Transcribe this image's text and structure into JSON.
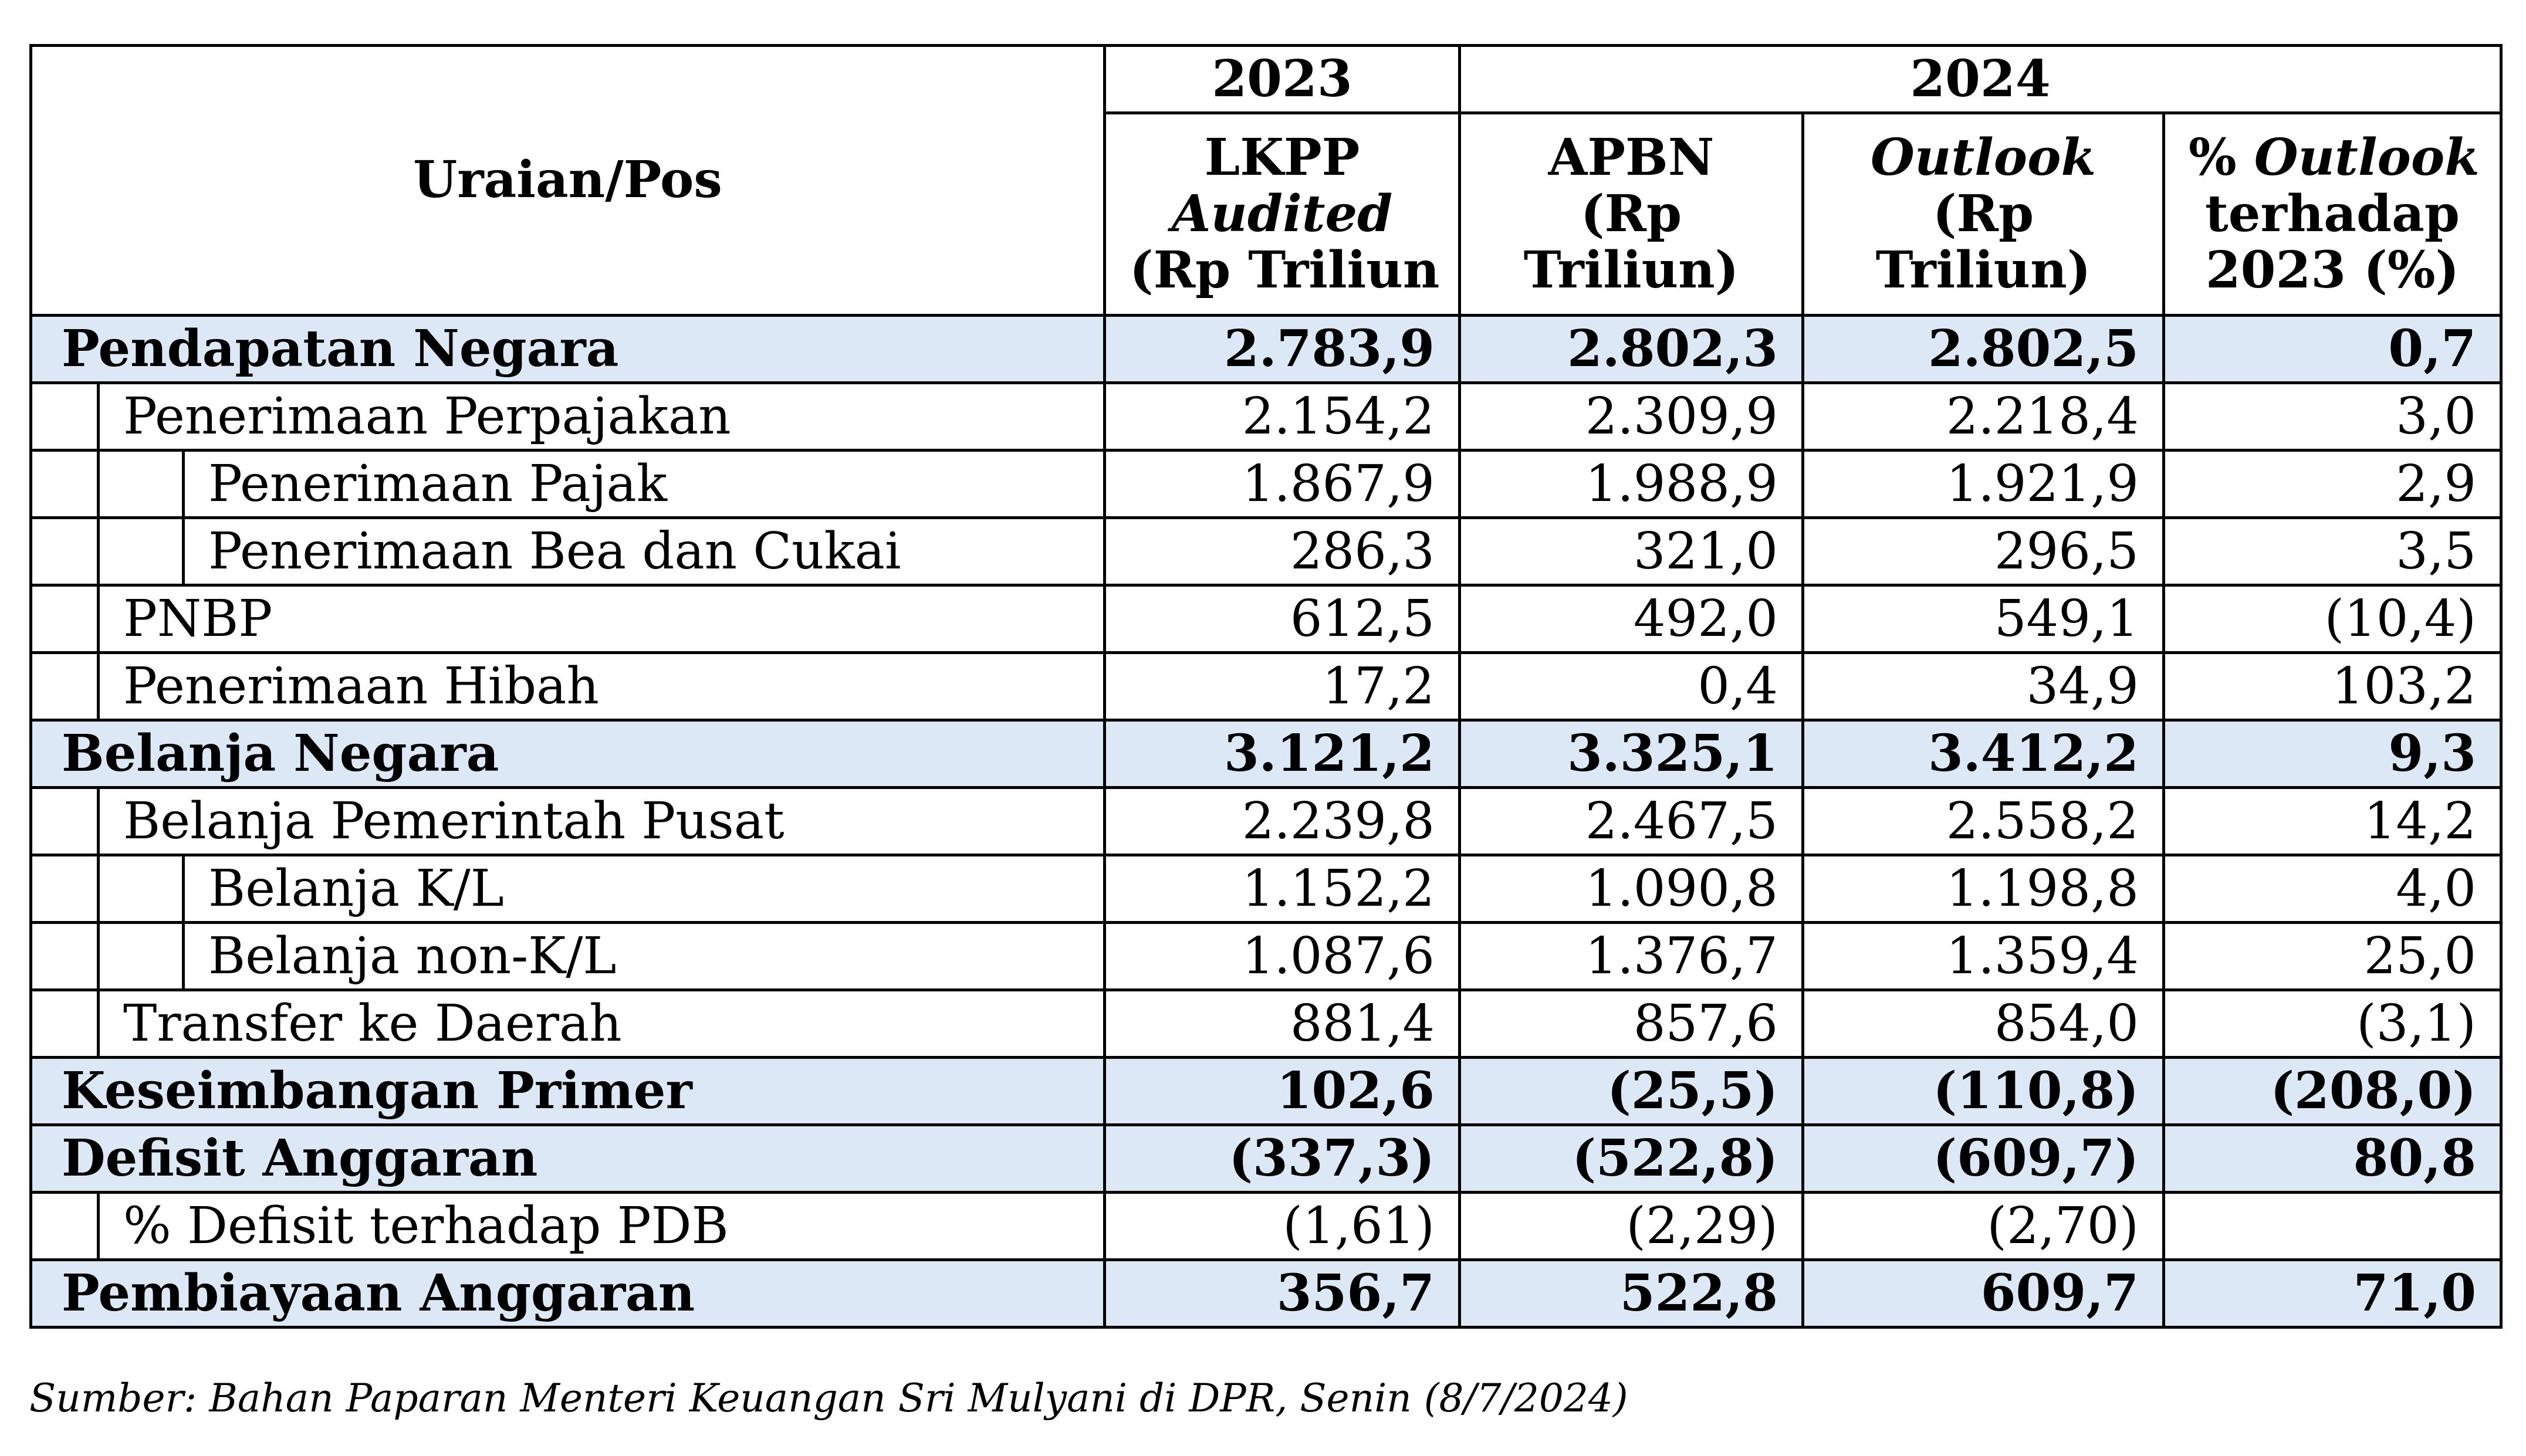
{
  "table": {
    "header": {
      "pos_label": "Uraian/Pos",
      "year_2023": "2023",
      "year_2024": "2024",
      "col_lkpp": [
        "LKPP",
        "Audited",
        "(Rp Triliun"
      ],
      "col_apbn": [
        "APBN",
        "(Rp",
        "Triliun)"
      ],
      "col_outlook": [
        "Outlook",
        "(Rp",
        "Triliun)"
      ],
      "col_pct": [
        "%",
        "Outlook",
        "terhadap",
        "2023 (%)"
      ]
    },
    "rows": [
      {
        "label": "Pendapatan Negara",
        "lkpp": "2.783,9",
        "apbn": "2.802,3",
        "outlook": "2.802,5",
        "pct": "0,7"
      },
      {
        "label": "Penerimaan Perpajakan",
        "lkpp": "2.154,2",
        "apbn": "2.309,9",
        "outlook": "2.218,4",
        "pct": "3,0"
      },
      {
        "label": "Penerimaan Pajak",
        "lkpp": "1.867,9",
        "apbn": "1.988,9",
        "outlook": "1.921,9",
        "pct": "2,9"
      },
      {
        "label": "Penerimaan Bea dan Cukai",
        "lkpp": "286,3",
        "apbn": "321,0",
        "outlook": "296,5",
        "pct": "3,5"
      },
      {
        "label": "PNBP",
        "lkpp": "612,5",
        "apbn": "492,0",
        "outlook": "549,1",
        "pct": "(10,4)"
      },
      {
        "label": "Penerimaan Hibah",
        "lkpp": "17,2",
        "apbn": "0,4",
        "outlook": "34,9",
        "pct": "103,2"
      },
      {
        "label": "Belanja Negara",
        "lkpp": "3.121,2",
        "apbn": "3.325,1",
        "outlook": "3.412,2",
        "pct": "9,3"
      },
      {
        "label": "Belanja Pemerintah Pusat",
        "lkpp": "2.239,8",
        "apbn": "2.467,5",
        "outlook": "2.558,2",
        "pct": "14,2"
      },
      {
        "label": "Belanja K/L",
        "lkpp": "1.152,2",
        "apbn": "1.090,8",
        "outlook": "1.198,8",
        "pct": "4,0"
      },
      {
        "label": "Belanja non-K/L",
        "lkpp": "1.087,6",
        "apbn": "1.376,7",
        "outlook": "1.359,4",
        "pct": "25,0"
      },
      {
        "label": "Transfer ke Daerah",
        "lkpp": "881,4",
        "apbn": "857,6",
        "outlook": "854,0",
        "pct": "(3,1)"
      },
      {
        "label": "Keseimbangan Primer",
        "lkpp": "102,6",
        "apbn": "(25,5)",
        "outlook": "(110,8)",
        "pct": "(208,0)"
      },
      {
        "label": "Defisit Anggaran",
        "lkpp": "(337,3)",
        "apbn": "(522,8)",
        "outlook": "(609,7)",
        "pct": "80,8"
      },
      {
        "label": "% Defisit terhadap PDB",
        "lkpp": "(1,61)",
        "apbn": "(2,29)",
        "outlook": "(2,70)",
        "pct": ""
      },
      {
        "label": "Pembiayaan Anggaran",
        "lkpp": "356,7",
        "apbn": "522,8",
        "outlook": "609,7",
        "pct": "71,0"
      }
    ]
  },
  "source_note": "Sumber: Bahan Paparan Menteri Keuangan Sri Mulyani di DPR, Senin (8/7/2024)",
  "colors": {
    "group_row_bg": "#dde8f6",
    "border": "#000000",
    "text": "#000000"
  }
}
